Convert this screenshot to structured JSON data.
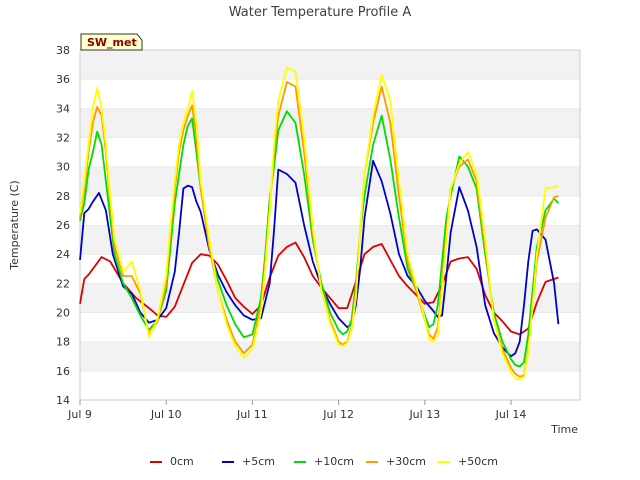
{
  "chart_data": {
    "type": "line",
    "title": "Water Temperature Profile A",
    "xlabel": "Time",
    "ylabel": "Temperature (C)",
    "badge": "SW_met",
    "ylim": [
      14,
      38
    ],
    "yticks": [
      14,
      16,
      18,
      20,
      22,
      24,
      26,
      28,
      30,
      32,
      34,
      36,
      38
    ],
    "xlim": [
      0,
      5.8
    ],
    "xticks": [
      {
        "value": 0,
        "label": "Jul 9"
      },
      {
        "value": 1,
        "label": "Jul 10"
      },
      {
        "value": 2,
        "label": "Jul 11"
      },
      {
        "value": 3,
        "label": "Jul 12"
      },
      {
        "value": 4,
        "label": "Jul 13"
      },
      {
        "value": 5,
        "label": "Jul 14"
      }
    ],
    "grid": "horizontal bands",
    "legend_position": "bottom",
    "series": [
      {
        "name": "0cm",
        "color": "#dd0000",
        "x": [
          0.0,
          0.05,
          0.1,
          0.15,
          0.25,
          0.35,
          0.5,
          0.65,
          0.8,
          0.9,
          1.0,
          1.1,
          1.2,
          1.3,
          1.4,
          1.5,
          1.6,
          1.7,
          1.8,
          1.9,
          2.0,
          2.1,
          2.2,
          2.3,
          2.4,
          2.5,
          2.6,
          2.7,
          2.8,
          2.9,
          3.0,
          3.1,
          3.2,
          3.3,
          3.4,
          3.5,
          3.6,
          3.7,
          3.8,
          3.9,
          4.0,
          4.1,
          4.2,
          4.3,
          4.4,
          4.5,
          4.6,
          4.7,
          4.8,
          4.9,
          5.0,
          5.1,
          5.2,
          5.3,
          5.4,
          5.55
        ],
        "y": [
          20.6,
          22.3,
          22.6,
          23.0,
          23.8,
          23.5,
          22.0,
          21.0,
          20.3,
          19.8,
          19.7,
          20.4,
          21.9,
          23.4,
          24.0,
          23.9,
          23.3,
          22.2,
          21.0,
          20.4,
          19.9,
          20.5,
          22.4,
          23.9,
          24.5,
          24.8,
          23.8,
          22.5,
          21.7,
          21.0,
          20.3,
          20.3,
          22.1,
          24.0,
          24.5,
          24.7,
          23.6,
          22.5,
          21.8,
          21.2,
          20.6,
          20.7,
          21.9,
          23.5,
          23.7,
          23.8,
          23.0,
          21.2,
          20.0,
          19.4,
          18.7,
          18.5,
          18.9,
          20.7,
          22.1,
          22.4
        ]
      },
      {
        "name": "+5cm",
        "color": "#0000cc",
        "x": [
          0.0,
          0.05,
          0.1,
          0.15,
          0.22,
          0.3,
          0.38,
          0.5,
          0.6,
          0.7,
          0.8,
          0.9,
          1.0,
          1.1,
          1.15,
          1.2,
          1.25,
          1.3,
          1.35,
          1.4,
          1.5,
          1.6,
          1.7,
          1.8,
          1.9,
          2.0,
          2.1,
          2.2,
          2.25,
          2.3,
          2.4,
          2.5,
          2.6,
          2.7,
          2.8,
          2.9,
          3.0,
          3.1,
          3.15,
          3.2,
          3.25,
          3.3,
          3.4,
          3.5,
          3.6,
          3.7,
          3.8,
          3.9,
          4.0,
          4.1,
          4.15,
          4.2,
          4.25,
          4.3,
          4.4,
          4.5,
          4.6,
          4.7,
          4.8,
          4.9,
          5.0,
          5.05,
          5.1,
          5.15,
          5.2,
          5.25,
          5.3,
          5.4,
          5.5,
          5.55
        ],
        "y": [
          23.6,
          26.8,
          27.1,
          27.6,
          28.2,
          27.0,
          24.0,
          21.8,
          21.3,
          20.0,
          19.3,
          19.5,
          20.3,
          22.8,
          25.5,
          28.5,
          28.7,
          28.6,
          27.6,
          26.9,
          24.3,
          22.6,
          21.4,
          20.5,
          19.8,
          19.5,
          19.6,
          22.0,
          25.6,
          29.8,
          29.5,
          28.9,
          26.0,
          23.5,
          21.8,
          20.6,
          19.6,
          19.0,
          19.2,
          20.5,
          23.0,
          26.5,
          30.4,
          29.0,
          26.8,
          24.0,
          22.5,
          21.8,
          20.8,
          20.1,
          19.7,
          19.8,
          22.5,
          25.5,
          28.6,
          27.0,
          24.5,
          20.5,
          18.6,
          17.6,
          17.0,
          17.2,
          18.0,
          20.5,
          23.5,
          25.6,
          25.7,
          25.0,
          22.0,
          19.2
        ]
      },
      {
        "name": "+10cm",
        "color": "#00dd00",
        "x": [
          0.0,
          0.05,
          0.1,
          0.15,
          0.2,
          0.25,
          0.3,
          0.35,
          0.4,
          0.5,
          0.6,
          0.7,
          0.8,
          0.9,
          1.0,
          1.05,
          1.1,
          1.15,
          1.2,
          1.25,
          1.3,
          1.35,
          1.4,
          1.5,
          1.6,
          1.7,
          1.8,
          1.9,
          2.0,
          2.1,
          2.15,
          2.2,
          2.25,
          2.3,
          2.4,
          2.5,
          2.6,
          2.7,
          2.8,
          2.9,
          3.0,
          3.05,
          3.1,
          3.15,
          3.2,
          3.25,
          3.3,
          3.4,
          3.5,
          3.6,
          3.7,
          3.8,
          3.9,
          4.0,
          4.05,
          4.1,
          4.15,
          4.2,
          4.25,
          4.3,
          4.4,
          4.5,
          4.6,
          4.7,
          4.8,
          4.9,
          5.0,
          5.05,
          5.1,
          5.15,
          5.2,
          5.25,
          5.3,
          5.4,
          5.5,
          5.55
        ],
        "y": [
          26.3,
          27.5,
          29.8,
          31.0,
          32.4,
          31.5,
          29.0,
          26.5,
          24.0,
          22.0,
          21.0,
          19.8,
          18.8,
          19.5,
          21.5,
          24.5,
          27.5,
          29.5,
          31.5,
          32.8,
          33.3,
          31.0,
          28.5,
          24.5,
          22.2,
          20.5,
          19.2,
          18.3,
          18.5,
          21.0,
          24.0,
          27.8,
          30.0,
          32.5,
          33.8,
          33.0,
          29.5,
          25.0,
          22.0,
          20.0,
          18.8,
          18.5,
          18.7,
          19.5,
          22.0,
          25.5,
          28.0,
          31.5,
          33.5,
          30.5,
          26.5,
          23.0,
          21.5,
          19.8,
          19.0,
          19.2,
          20.5,
          23.5,
          26.5,
          28.0,
          30.7,
          30.0,
          28.5,
          24.0,
          20.0,
          18.0,
          16.8,
          16.4,
          16.3,
          16.6,
          18.5,
          21.5,
          24.5,
          27.0,
          27.8,
          27.5
        ]
      },
      {
        "name": "+30cm",
        "color": "#ff9900",
        "x": [
          0.0,
          0.05,
          0.1,
          0.15,
          0.2,
          0.25,
          0.3,
          0.35,
          0.4,
          0.5,
          0.6,
          0.7,
          0.8,
          0.9,
          1.0,
          1.05,
          1.1,
          1.15,
          1.2,
          1.25,
          1.3,
          1.35,
          1.4,
          1.5,
          1.6,
          1.7,
          1.8,
          1.9,
          2.0,
          2.1,
          2.15,
          2.2,
          2.25,
          2.3,
          2.4,
          2.5,
          2.6,
          2.7,
          2.8,
          2.9,
          3.0,
          3.05,
          3.1,
          3.15,
          3.2,
          3.25,
          3.3,
          3.4,
          3.5,
          3.6,
          3.7,
          3.8,
          3.9,
          4.0,
          4.05,
          4.1,
          4.15,
          4.2,
          4.25,
          4.3,
          4.4,
          4.5,
          4.6,
          4.7,
          4.8,
          4.9,
          5.0,
          5.05,
          5.1,
          5.15,
          5.2,
          5.25,
          5.3,
          5.4,
          5.5,
          5.55
        ],
        "y": [
          26.5,
          28.5,
          31.0,
          33.0,
          34.1,
          33.5,
          31.0,
          27.5,
          24.5,
          22.5,
          22.5,
          21.3,
          18.5,
          19.4,
          22.0,
          25.5,
          28.5,
          31.0,
          32.5,
          33.5,
          34.2,
          32.0,
          28.5,
          24.5,
          21.5,
          19.5,
          18.0,
          17.2,
          17.8,
          20.5,
          23.5,
          27.0,
          31.0,
          33.5,
          35.8,
          35.5,
          31.0,
          25.5,
          21.5,
          19.5,
          18.0,
          17.8,
          18.0,
          19.0,
          21.5,
          25.5,
          29.5,
          33.0,
          35.5,
          33.0,
          28.0,
          23.5,
          21.5,
          19.5,
          18.5,
          18.2,
          19.0,
          22.0,
          25.5,
          28.5,
          30.0,
          30.5,
          29.0,
          24.5,
          19.5,
          17.5,
          16.2,
          15.8,
          15.6,
          15.7,
          17.5,
          20.5,
          23.5,
          26.5,
          27.9,
          28.0
        ]
      },
      {
        "name": "+50cm",
        "color": "#ffff00",
        "x": [
          0.0,
          0.05,
          0.1,
          0.15,
          0.2,
          0.25,
          0.3,
          0.35,
          0.4,
          0.5,
          0.6,
          0.7,
          0.8,
          0.9,
          1.0,
          1.05,
          1.1,
          1.15,
          1.2,
          1.25,
          1.3,
          1.35,
          1.4,
          1.5,
          1.6,
          1.7,
          1.8,
          1.9,
          2.0,
          2.1,
          2.15,
          2.2,
          2.25,
          2.3,
          2.4,
          2.5,
          2.6,
          2.7,
          2.8,
          2.9,
          3.0,
          3.05,
          3.1,
          3.15,
          3.2,
          3.25,
          3.3,
          3.4,
          3.5,
          3.6,
          3.7,
          3.8,
          3.9,
          4.0,
          4.05,
          4.1,
          4.15,
          4.2,
          4.25,
          4.3,
          4.4,
          4.5,
          4.6,
          4.7,
          4.8,
          4.9,
          5.0,
          5.05,
          5.1,
          5.15,
          5.2,
          5.25,
          5.3,
          5.4,
          5.5,
          5.55
        ],
        "y": [
          26.8,
          29.0,
          31.5,
          34.0,
          35.4,
          34.0,
          31.5,
          28.0,
          25.0,
          22.8,
          23.5,
          21.5,
          18.3,
          19.6,
          22.5,
          26.0,
          29.0,
          31.5,
          33.0,
          34.0,
          35.2,
          33.0,
          29.0,
          25.0,
          21.5,
          19.2,
          17.7,
          16.9,
          17.5,
          20.0,
          23.0,
          27.0,
          31.5,
          34.5,
          36.8,
          36.5,
          32.0,
          25.8,
          21.5,
          19.3,
          17.8,
          17.7,
          17.9,
          18.8,
          21.0,
          25.5,
          29.5,
          33.5,
          36.3,
          34.5,
          29.0,
          24.0,
          21.8,
          19.6,
          18.2,
          18.0,
          18.5,
          21.5,
          25.0,
          28.5,
          30.2,
          31.0,
          29.5,
          25.0,
          19.5,
          17.2,
          15.9,
          15.5,
          15.4,
          15.6,
          17.2,
          20.5,
          24.0,
          28.5,
          28.6,
          28.7
        ]
      }
    ]
  }
}
